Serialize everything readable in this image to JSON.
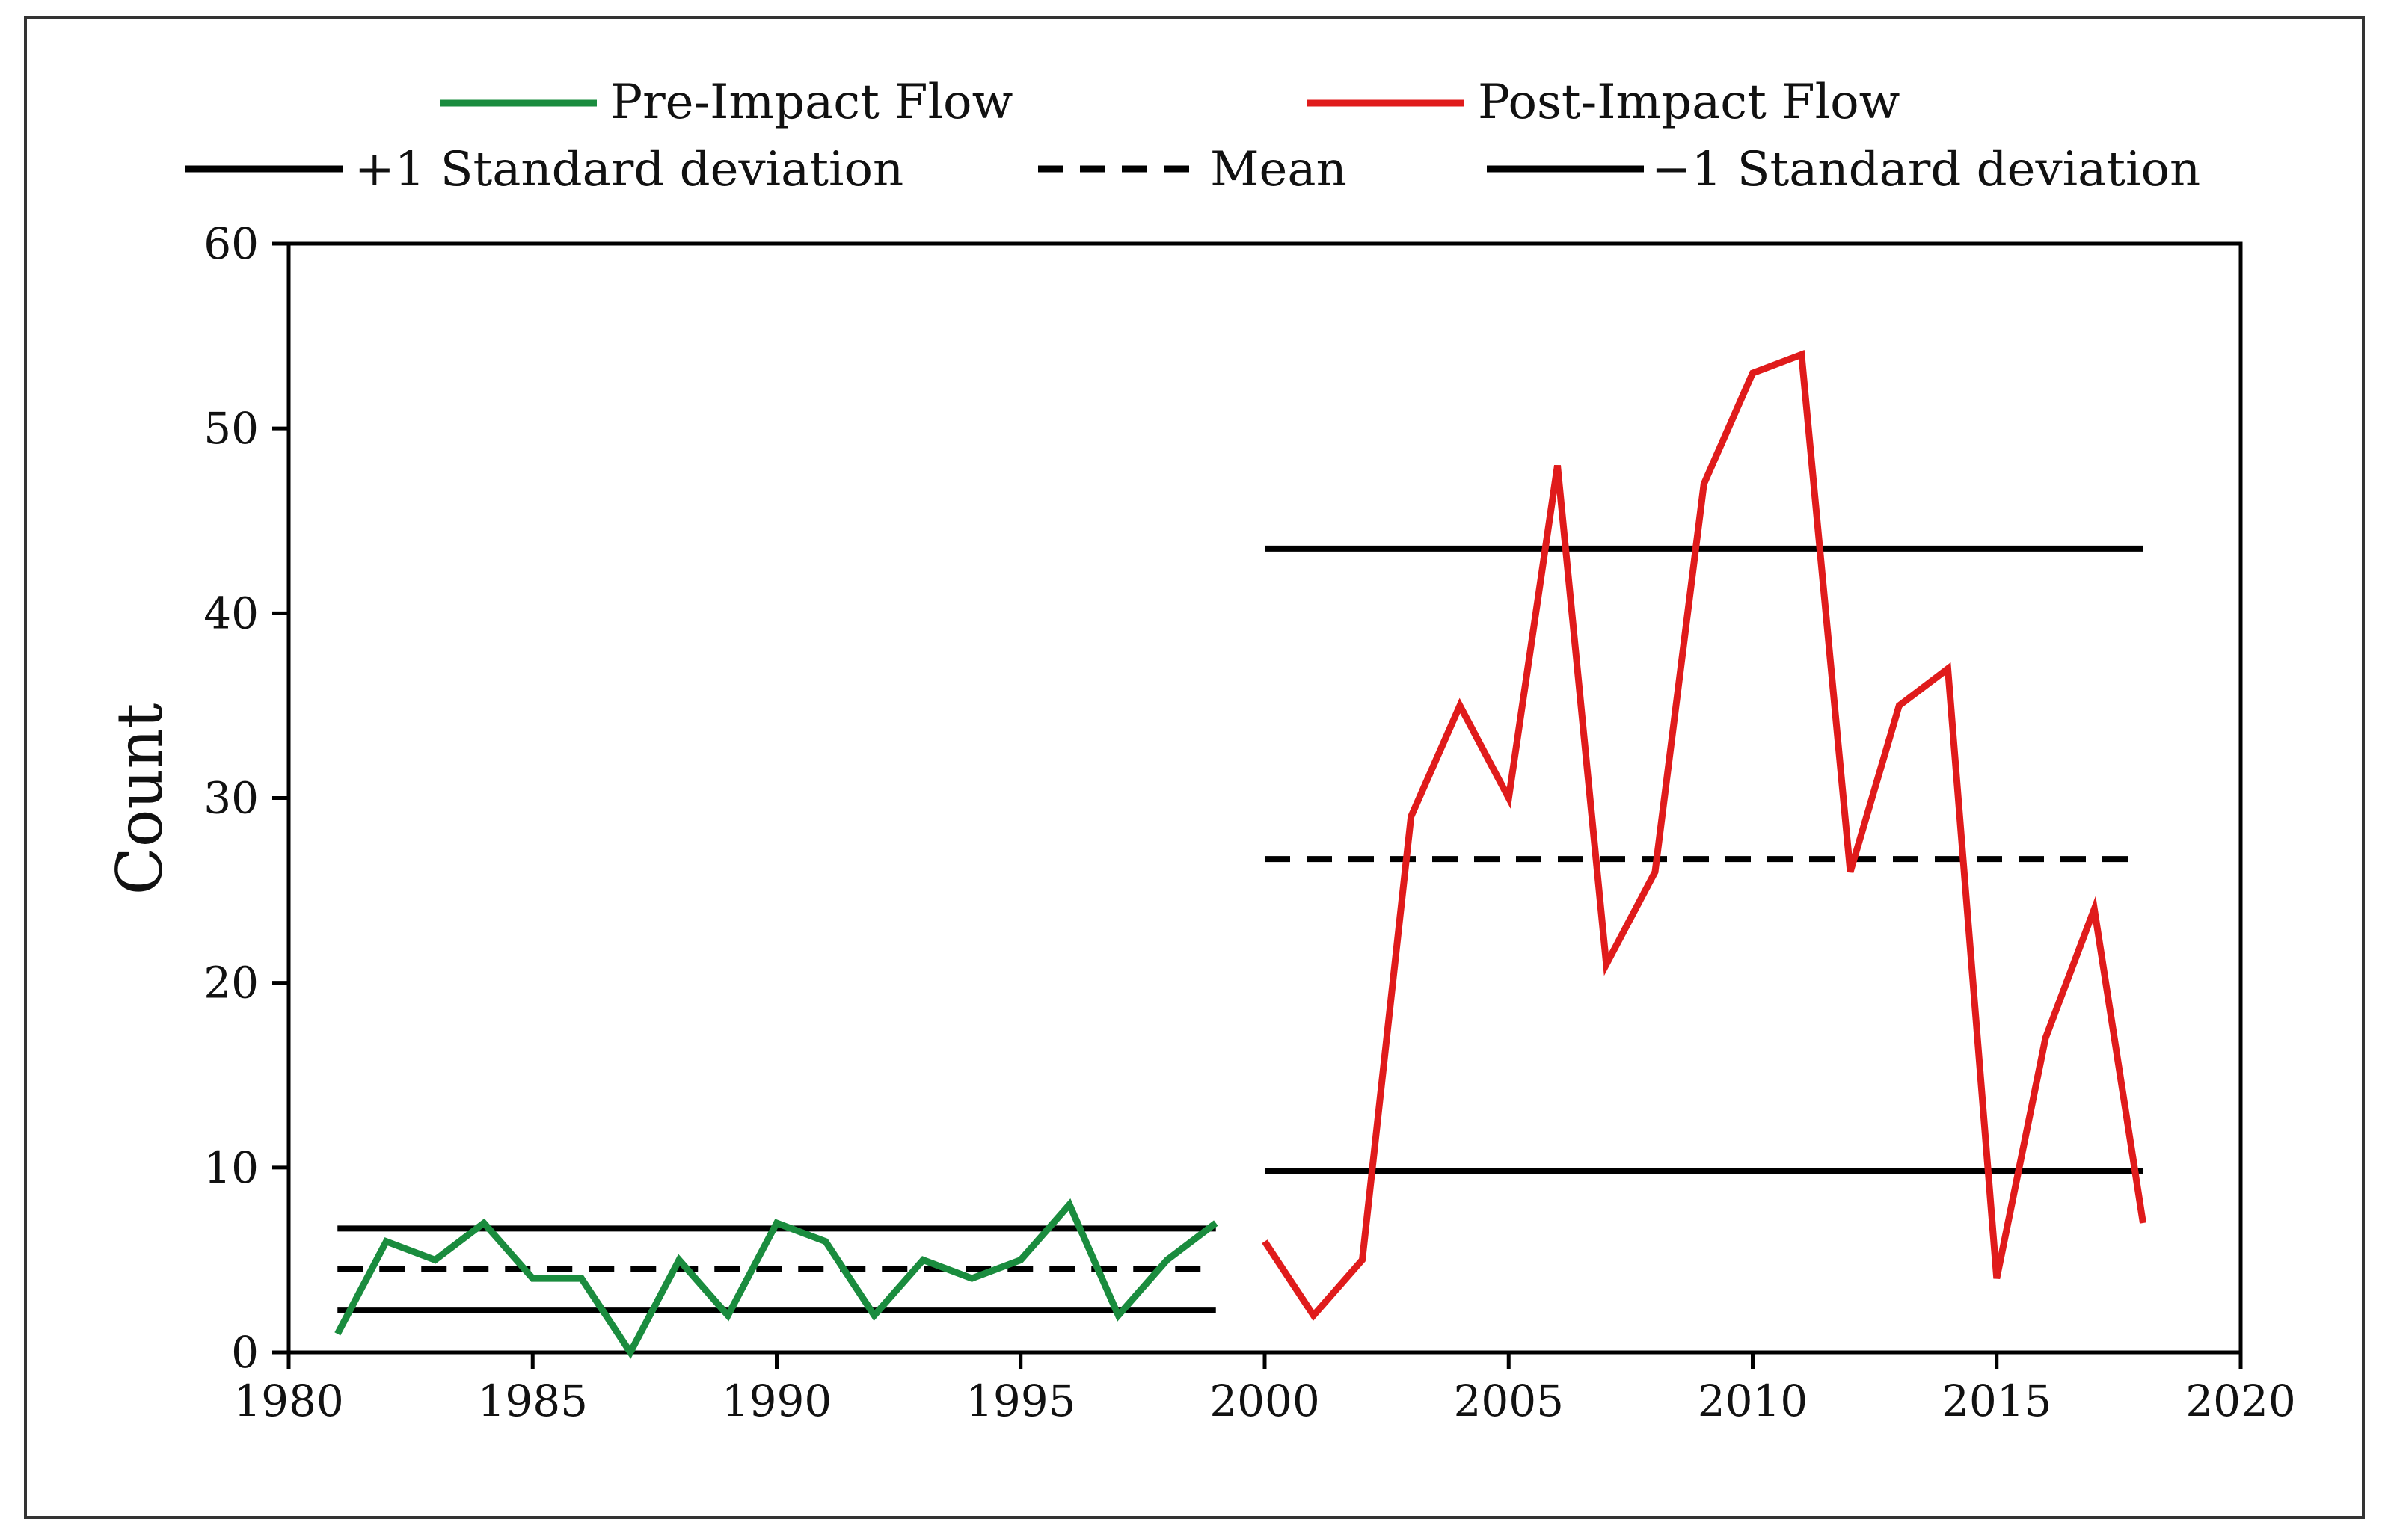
{
  "chart_data": {
    "type": "line",
    "title": "",
    "xlabel": "",
    "ylabel": "Count",
    "xlim": [
      1980,
      2020
    ],
    "ylim": [
      0,
      60
    ],
    "xticks": [
      1980,
      1985,
      1990,
      1995,
      2000,
      2005,
      2010,
      2015,
      2020
    ],
    "yticks": [
      0,
      10,
      20,
      30,
      40,
      50,
      60
    ],
    "grid": false,
    "legend_position": "top",
    "series": [
      {
        "name": "Pre-Impact Flow",
        "color": "#1a8c3e",
        "x": [
          1981,
          1982,
          1983,
          1984,
          1985,
          1986,
          1987,
          1988,
          1989,
          1990,
          1991,
          1992,
          1993,
          1994,
          1995,
          1996,
          1997,
          1998,
          1999
        ],
        "values": [
          1,
          6,
          5,
          7,
          4,
          4,
          0,
          5,
          2,
          7,
          6,
          2,
          5,
          4,
          5,
          8,
          2,
          5,
          7
        ]
      },
      {
        "name": "Post-Impact Flow",
        "color": "#e01b1b",
        "x": [
          2000,
          2001,
          2002,
          2003,
          2004,
          2005,
          2006,
          2007,
          2008,
          2009,
          2010,
          2011,
          2012,
          2013,
          2014,
          2015,
          2016,
          2017,
          2018
        ],
        "values": [
          6,
          2,
          5,
          29,
          35,
          30,
          48,
          21,
          26,
          47,
          53,
          54,
          26,
          35,
          37,
          4,
          17,
          24,
          7
        ]
      }
    ],
    "reference_lines": [
      {
        "label": "+1 Standard deviation",
        "style": "solid",
        "color": "#000000",
        "segments": [
          {
            "x": [
              1981,
              1999
            ],
            "y": 6.7
          },
          {
            "x": [
              2000,
              2018
            ],
            "y": 43.5
          }
        ]
      },
      {
        "label": "Mean",
        "style": "dashed",
        "color": "#000000",
        "segments": [
          {
            "x": [
              1981,
              1999
            ],
            "y": 4.5
          },
          {
            "x": [
              2000,
              2018
            ],
            "y": 26.7
          }
        ]
      },
      {
        "label": "−1 Standard deviation",
        "style": "solid",
        "color": "#000000",
        "segments": [
          {
            "x": [
              1981,
              1999
            ],
            "y": 2.3
          },
          {
            "x": [
              2000,
              2018
            ],
            "y": 9.8
          }
        ]
      }
    ],
    "legend": {
      "pre": "Pre-Impact Flow",
      "post": "Post-Impact Flow",
      "plus_sd": "+1 Standard deviation",
      "mean": "Mean",
      "minus_sd": "−1 Standard deviation"
    }
  }
}
